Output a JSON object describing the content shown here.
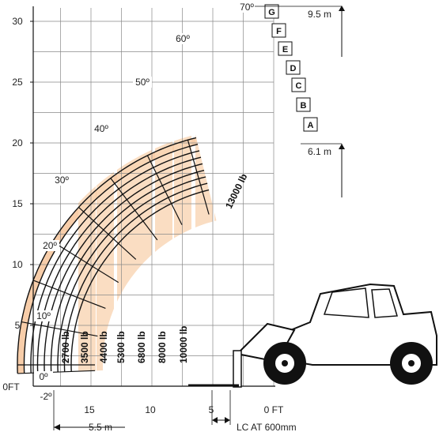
{
  "chart_data": {
    "type": "load-chart",
    "y_axis": {
      "unit": "FT",
      "ticks": [
        0,
        5,
        10,
        15,
        20,
        25,
        30
      ]
    },
    "x_axis": {
      "unit": "FT",
      "ticks": [
        15,
        10,
        5,
        0
      ]
    },
    "boom_angles": [
      {
        "label": "70º",
        "angle": 70
      },
      {
        "label": "60º",
        "angle": 60
      },
      {
        "label": "50º",
        "angle": 50
      },
      {
        "label": "40º",
        "angle": 40
      },
      {
        "label": "30º",
        "angle": 30
      },
      {
        "label": "20º",
        "angle": 20
      },
      {
        "label": "10º",
        "angle": 10
      },
      {
        "label": "0º",
        "angle": 0
      },
      {
        "label": "-2º",
        "angle": -2
      }
    ],
    "extension_positions": [
      "A",
      "B",
      "C",
      "D",
      "E",
      "F",
      "G"
    ],
    "load_zones": [
      {
        "label": "2700 lb",
        "reach_ft": 17.5
      },
      {
        "label": "3500 lb",
        "reach_ft": 15.0
      },
      {
        "label": "4400 lb",
        "reach_ft": 13.5
      },
      {
        "label": "5300 lb",
        "reach_ft": 12.0
      },
      {
        "label": "6800 lb",
        "reach_ft": 10.5
      },
      {
        "label": "8000 lb",
        "reach_ft": 9.0
      },
      {
        "label": "10000 lb",
        "reach_ft": 7.2
      },
      {
        "label": "13000 lb",
        "reach_ft": 5.5
      }
    ],
    "annotations": {
      "max_height": "9.5 m",
      "retracted_height": "6.1 m",
      "max_reach": "5.5 m",
      "load_center": "LC AT 600mm"
    }
  },
  "axis_origin_label": "0FT",
  "x_zero_label": "0 FT"
}
